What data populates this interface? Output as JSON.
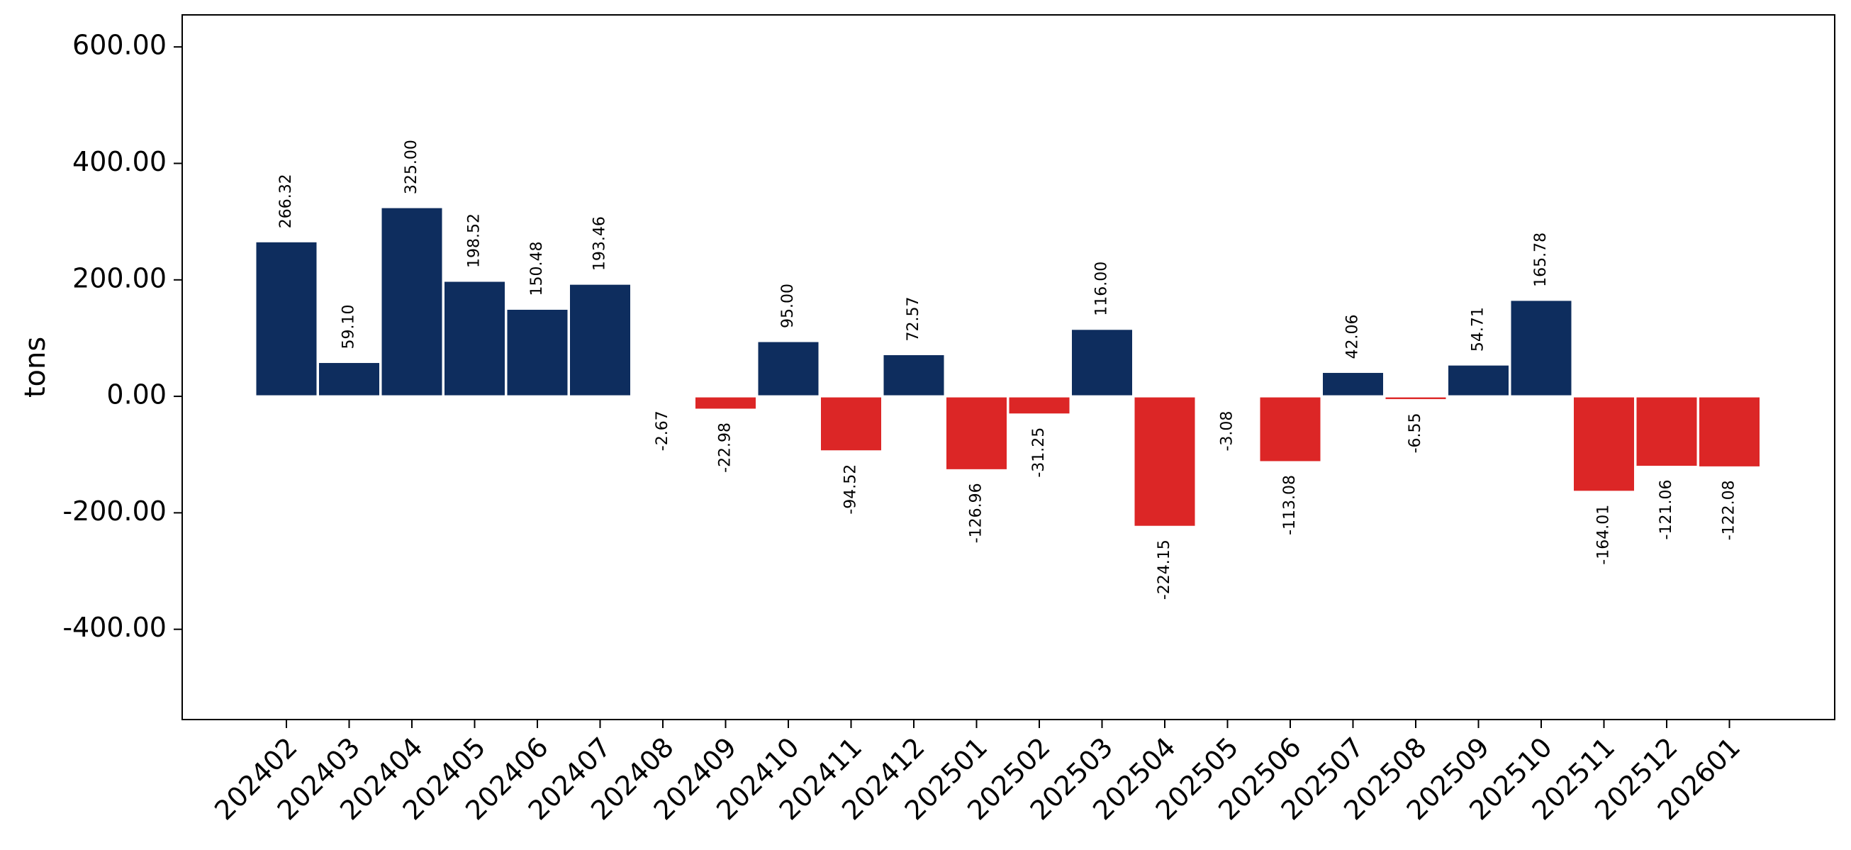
{
  "chart_data": {
    "type": "bar",
    "title": "",
    "xlabel": "",
    "ylabel": "tons",
    "ylim": [
      -555,
      655
    ],
    "yticks": [
      -400,
      -200,
      0,
      200,
      400,
      600
    ],
    "ytick_labels": [
      "-400.00",
      "-200.00",
      "0.00",
      "200.00",
      "400.00",
      "600.00"
    ],
    "grid": false,
    "colors": {
      "positive": "#0e2d5e",
      "negative": "#dc2626",
      "edge": "#ffffff"
    },
    "categories": [
      "202402",
      "202403",
      "202404",
      "202405",
      "202406",
      "202407",
      "202408",
      "202409",
      "202410",
      "202411",
      "202412",
      "202501",
      "202502",
      "202503",
      "202504",
      "202505",
      "202506",
      "202507",
      "202508",
      "202509",
      "202510",
      "202511",
      "202512",
      "202601"
    ],
    "values": [
      266.32,
      59.1,
      325.0,
      198.52,
      150.48,
      193.46,
      -2.67,
      -22.98,
      95.0,
      -94.52,
      72.57,
      -126.96,
      -31.25,
      116.0,
      -224.15,
      -3.08,
      -113.08,
      42.06,
      -6.55,
      54.71,
      165.78,
      -164.01,
      -121.06,
      -122.08
    ],
    "value_labels": [
      "266.32",
      "59.10",
      "325.00",
      "198.52",
      "150.48",
      "193.46",
      "-2.67",
      "-22.98",
      "95.00",
      "-94.52",
      "72.57",
      "-126.96",
      "-31.25",
      "116.00",
      "-224.15",
      "-3.08",
      "-113.08",
      "42.06",
      "-6.55",
      "54.71",
      "165.78",
      "-164.01",
      "-121.06",
      "-122.08"
    ]
  }
}
